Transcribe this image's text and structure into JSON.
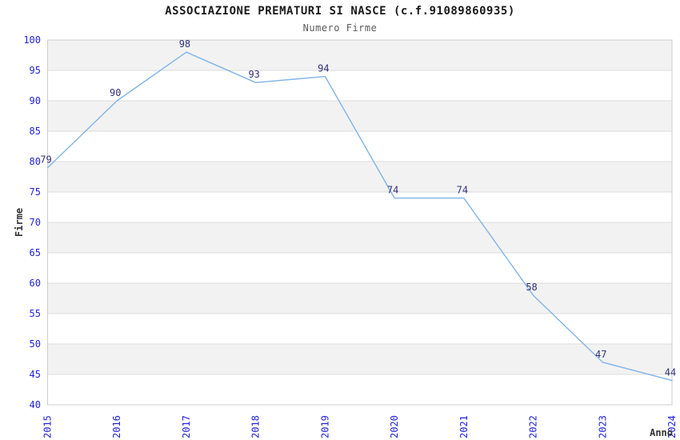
{
  "chart_data": {
    "type": "line",
    "title": "ASSOCIAZIONE PREMATURI SI NASCE (c.f.91089860935)",
    "subtitle": "Numero Firme",
    "xlabel": "Anno",
    "ylabel": "Firme",
    "categories": [
      "2015",
      "2016",
      "2017",
      "2018",
      "2019",
      "2020",
      "2021",
      "2022",
      "2023",
      "2024"
    ],
    "series": [
      {
        "name": "Numero Firme",
        "values": [
          79,
          90,
          98,
          93,
          94,
          74,
          74,
          58,
          47,
          44
        ]
      }
    ],
    "ylim": [
      40,
      100
    ],
    "ytick_step": 5,
    "grid": "horizontal",
    "legend": "none",
    "colors": {
      "line": "#80b4e8",
      "point_label": "#333377",
      "tick_label": "#2222dd",
      "axis_title": "#333333",
      "band_odd": "#f2f2f2",
      "band_even": "#ffffff",
      "gridline": "#dcdcdc",
      "plot_border": "#cccccc"
    }
  }
}
